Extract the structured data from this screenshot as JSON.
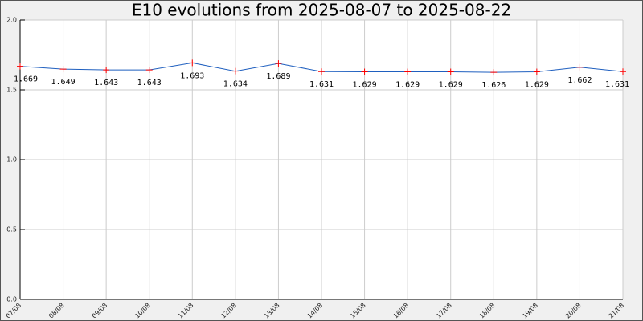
{
  "chart_data": {
    "type": "line",
    "title": "E10 evolutions from 2025-08-07 to 2025-08-22",
    "categories": [
      "07/08",
      "08/08",
      "09/08",
      "10/08",
      "11/08",
      "12/08",
      "13/08",
      "14/08",
      "15/08",
      "16/08",
      "17/08",
      "18/08",
      "19/08",
      "20/08",
      "21/08"
    ],
    "values": [
      1.669,
      1.649,
      1.643,
      1.643,
      1.693,
      1.634,
      1.689,
      1.631,
      1.629,
      1.629,
      1.629,
      1.626,
      1.629,
      1.662,
      1.631
    ],
    "color": "#1f5fbf",
    "marker_color": "#ff0000",
    "ylim": [
      0,
      2
    ],
    "yticks": [
      {
        "value": 0,
        "label": "0.0"
      },
      {
        "value": 0.5,
        "label": "0.5"
      },
      {
        "value": 1,
        "label": "1.0"
      },
      {
        "value": 1.5,
        "label": "1.5"
      },
      {
        "value": 2,
        "label": "2.0"
      }
    ],
    "grid": true
  }
}
